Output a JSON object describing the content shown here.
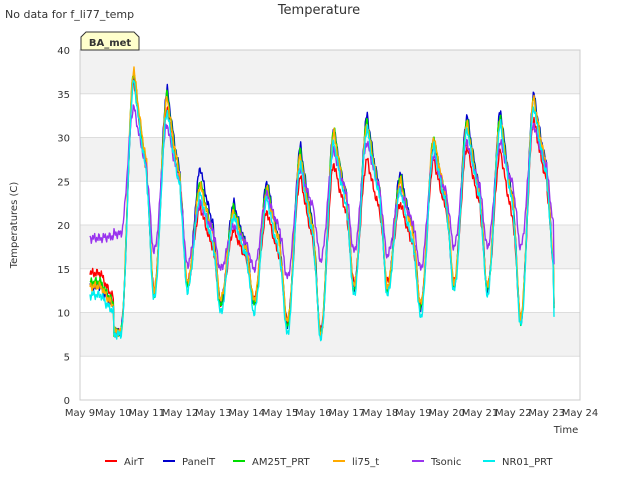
{
  "header": {
    "no_data": "No data for f_li77_temp",
    "station_badge": "BA_met"
  },
  "chart_data": {
    "type": "line",
    "title": "Temperature",
    "xlabel": "Time",
    "ylabel": "Temperatures (C)",
    "xlim": [
      9,
      24
    ],
    "ylim": [
      0,
      40
    ],
    "x_ticks": [
      9,
      10,
      11,
      12,
      13,
      14,
      15,
      16,
      17,
      18,
      19,
      20,
      21,
      22,
      23,
      24
    ],
    "x_tick_labels": [
      "May 9",
      "May 10",
      "May 11",
      "May 12",
      "May 13",
      "May 14",
      "May 15",
      "May 16",
      "May 17",
      "May 18",
      "May 19",
      "May 20",
      "May 21",
      "May 22",
      "May 23",
      "May 24"
    ],
    "y_ticks": [
      0,
      5,
      10,
      15,
      20,
      25,
      30,
      35,
      40
    ],
    "grid": true,
    "legend_position": "bottom",
    "daily_pattern_note_free": true,
    "days": [
      9,
      10,
      11,
      12,
      13,
      14,
      15,
      16,
      17,
      18,
      19,
      20,
      21,
      22,
      23
    ],
    "series": [
      {
        "name": "AirT",
        "color": "#ff0000",
        "min": [
          14.5,
          7.8,
          12.5,
          13.5,
          11.0,
          11.5,
          9.0,
          8.0,
          13.5,
          13.5,
          11.0,
          13.5,
          13.0,
          9.5,
          15.5
        ],
        "max": [
          null,
          36.5,
          33.5,
          22.0,
          19.5,
          21.5,
          25.5,
          27.0,
          27.5,
          22.5,
          27.5,
          29.0,
          28.5,
          32.0,
          26.0
        ],
        "end": 11.0
      },
      {
        "name": "PanelT",
        "color": "#0000cc",
        "min": [
          13.0,
          7.8,
          12.0,
          13.0,
          11.0,
          11.0,
          8.5,
          7.5,
          12.5,
          12.5,
          10.5,
          13.0,
          12.5,
          9.0,
          15.5
        ],
        "max": [
          null,
          37.0,
          35.5,
          26.5,
          22.5,
          25.0,
          29.0,
          31.0,
          32.5,
          26.0,
          29.5,
          32.5,
          33.0,
          35.0,
          29.5
        ],
        "end": 10.5
      },
      {
        "name": "AM25T_PRT",
        "color": "#00dd00",
        "min": [
          13.5,
          7.8,
          12.0,
          13.0,
          11.0,
          11.0,
          8.5,
          7.5,
          12.5,
          12.5,
          10.5,
          13.0,
          12.5,
          9.0,
          15.5
        ],
        "max": [
          null,
          37.5,
          35.0,
          25.0,
          22.0,
          24.5,
          28.5,
          31.0,
          32.0,
          25.5,
          30.0,
          32.0,
          32.5,
          34.5,
          28.5
        ],
        "end": 10.5
      },
      {
        "name": "li75_t",
        "color": "#ffaa00",
        "min": [
          13.0,
          7.8,
          12.5,
          13.5,
          11.5,
          11.5,
          9.0,
          7.5,
          13.0,
          13.0,
          11.0,
          13.5,
          13.0,
          9.5,
          16.0
        ],
        "max": [
          null,
          37.8,
          34.5,
          24.5,
          21.5,
          24.0,
          28.0,
          30.5,
          31.5,
          25.0,
          30.0,
          31.5,
          32.0,
          34.5,
          28.0
        ],
        "end": 10.5
      },
      {
        "name": "Tsonic",
        "color": "#9933ee",
        "min": [
          18.5,
          19.0,
          17.0,
          15.5,
          15.0,
          15.0,
          14.0,
          16.0,
          17.0,
          16.5,
          15.0,
          17.5,
          17.5,
          17.5,
          20.0
        ],
        "max": [
          null,
          33.5,
          31.5,
          22.5,
          20.0,
          23.5,
          26.5,
          28.5,
          29.5,
          24.0,
          28.0,
          29.5,
          29.5,
          31.5,
          27.0
        ],
        "end": 15.5
      },
      {
        "name": "NR01_PRT",
        "color": "#00eeee",
        "min": [
          12.0,
          7.5,
          11.5,
          12.5,
          10.0,
          10.0,
          7.5,
          7.0,
          12.0,
          12.0,
          9.5,
          12.5,
          12.0,
          8.5,
          15.0
        ],
        "max": [
          null,
          36.5,
          33.0,
          23.5,
          21.0,
          23.0,
          27.0,
          29.5,
          31.0,
          24.0,
          29.0,
          31.0,
          31.5,
          33.5,
          28.0
        ],
        "end": 9.5
      }
    ]
  }
}
